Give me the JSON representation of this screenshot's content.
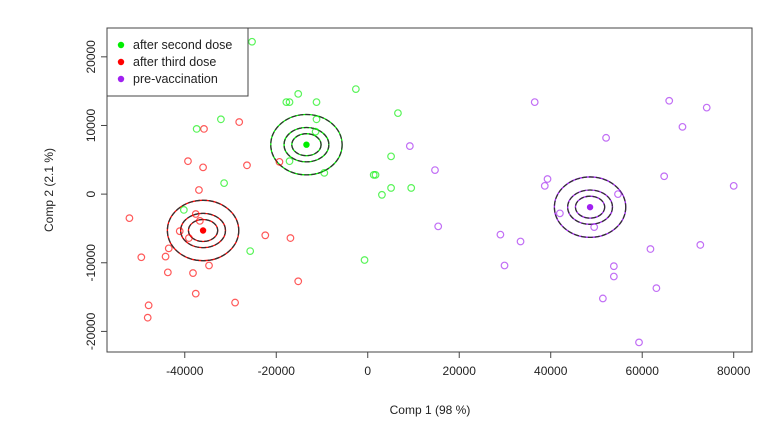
{
  "chart_data": {
    "type": "scatter",
    "title": "",
    "xlabel": "Comp 1 (98 %)",
    "ylabel": "Comp 2 (2.1 %)",
    "xlim": [
      -57000,
      84000
    ],
    "ylim": [
      -23000,
      24200
    ],
    "xticks": [
      -40000,
      -20000,
      0,
      20000,
      40000,
      60000,
      80000
    ],
    "yticks": [
      -20000,
      -10000,
      0,
      10000,
      20000
    ],
    "grid": false,
    "legend_position": "top-left",
    "series": [
      {
        "name": "after second dose",
        "color": "#00ee00",
        "centroid": [
          -13400,
          7200
        ],
        "ellipse_radii": [
          [
            7800,
            4400
          ],
          [
            4900,
            2500
          ],
          [
            3200,
            1600
          ]
        ],
        "points": [
          [
            -25300,
            22200
          ],
          [
            -15200,
            14600
          ],
          [
            -17800,
            13400
          ],
          [
            -17100,
            13400
          ],
          [
            -11200,
            13400
          ],
          [
            -2600,
            15300
          ],
          [
            -32100,
            10900
          ],
          [
            -37400,
            9500
          ],
          [
            -11200,
            10900
          ],
          [
            6600,
            11800
          ],
          [
            -11400,
            9100
          ],
          [
            -17100,
            4800
          ],
          [
            -9500,
            3100
          ],
          [
            5100,
            5500
          ],
          [
            1300,
            2800
          ],
          [
            1700,
            2800
          ],
          [
            -31400,
            1600
          ],
          [
            5100,
            900
          ],
          [
            9500,
            900
          ],
          [
            3100,
            -100
          ],
          [
            -40200,
            -2300
          ],
          [
            -25700,
            -8300
          ],
          [
            -700,
            -9600
          ]
        ]
      },
      {
        "name": "after third dose",
        "color": "#ff0000",
        "centroid": [
          -36000,
          -5300
        ],
        "ellipse_radii": [
          [
            7800,
            4400
          ],
          [
            4900,
            2500
          ],
          [
            3200,
            1600
          ]
        ],
        "points": [
          [
            -28100,
            10500
          ],
          [
            -35800,
            9500
          ],
          [
            -39300,
            4800
          ],
          [
            -36000,
            3900
          ],
          [
            -26400,
            4200
          ],
          [
            -19300,
            4700
          ],
          [
            -36900,
            600
          ],
          [
            -52100,
            -3500
          ],
          [
            -37600,
            -2900
          ],
          [
            -36700,
            -3900
          ],
          [
            -41100,
            -5400
          ],
          [
            -39100,
            -6400
          ],
          [
            -43500,
            -7900
          ],
          [
            -49500,
            -9200
          ],
          [
            -44200,
            -9100
          ],
          [
            -34700,
            -10400
          ],
          [
            -22400,
            -6000
          ],
          [
            -16900,
            -6400
          ],
          [
            -43700,
            -11400
          ],
          [
            -38200,
            -11500
          ],
          [
            -15200,
            -12700
          ],
          [
            -37600,
            -14500
          ],
          [
            -29000,
            -15800
          ],
          [
            -47900,
            -16200
          ],
          [
            -48100,
            -18000
          ]
        ]
      },
      {
        "name": "pre-vaccination",
        "color": "#a020f0",
        "centroid": [
          48600,
          -1900
        ],
        "ellipse_radii": [
          [
            7800,
            4400
          ],
          [
            4900,
            2500
          ],
          [
            3200,
            1600
          ]
        ],
        "points": [
          [
            9200,
            7000
          ],
          [
            14700,
            3500
          ],
          [
            15400,
            -4700
          ],
          [
            29000,
            -5900
          ],
          [
            33400,
            -6900
          ],
          [
            29900,
            -10400
          ],
          [
            36500,
            13400
          ],
          [
            39300,
            2200
          ],
          [
            38700,
            1200
          ],
          [
            42000,
            -2800
          ],
          [
            52100,
            8200
          ],
          [
            54700,
            0
          ],
          [
            49500,
            -4800
          ],
          [
            65900,
            13600
          ],
          [
            74100,
            12600
          ],
          [
            68800,
            9800
          ],
          [
            64800,
            2600
          ],
          [
            80000,
            1200
          ],
          [
            61800,
            -8000
          ],
          [
            72700,
            -7400
          ],
          [
            53800,
            -10500
          ],
          [
            53800,
            -12000
          ],
          [
            63100,
            -13700
          ],
          [
            51400,
            -15200
          ],
          [
            59300,
            -21600
          ]
        ]
      }
    ]
  }
}
